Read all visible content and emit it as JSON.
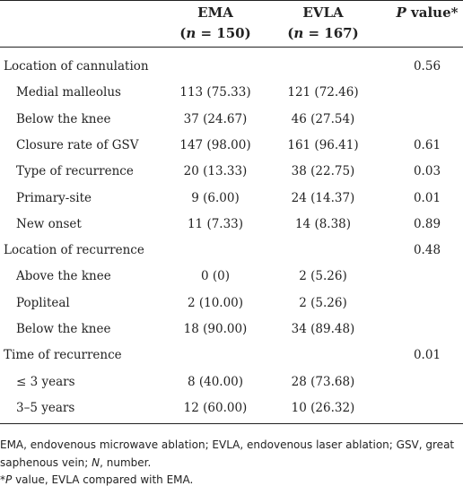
{
  "table": {
    "columns": [
      {
        "name": "EMA",
        "sub": [
          "(",
          "n",
          " = 150)"
        ]
      },
      {
        "name": "EVLA",
        "sub": [
          "(",
          "n",
          " = 167)"
        ]
      },
      {
        "name": [
          "P",
          " value*"
        ]
      }
    ],
    "groups": [
      {
        "label": "Location of cannulation",
        "p": "0.56",
        "rows": [
          {
            "label": "Medial malleolus",
            "ema": "113 (75.33)",
            "evla": "121 (72.46)"
          },
          {
            "label": "Below the knee",
            "ema": "37 (24.67)",
            "evla": "46 (27.54)"
          },
          {
            "label": "Closure rate of GSV",
            "ema": "147 (98.00)",
            "evla": "161 (96.41)",
            "p": "0.61"
          },
          {
            "label": "Type of recurrence",
            "ema": "20 (13.33)",
            "evla": "38 (22.75)",
            "p": "0.03"
          },
          {
            "label": "Primary-site",
            "ema": "9 (6.00)",
            "evla": "24 (14.37)",
            "p": "0.01"
          },
          {
            "label": "New onset",
            "ema": "11 (7.33)",
            "evla": "14 (8.38)",
            "p": "0.89"
          }
        ]
      },
      {
        "label": "Location of recurrence",
        "p": "0.48",
        "rows": [
          {
            "label": "Above the knee",
            "ema": "0 (0)",
            "evla": "2 (5.26)"
          },
          {
            "label": "Popliteal",
            "ema": "2 (10.00)",
            "evla": "2 (5.26)"
          },
          {
            "label": "Below the knee",
            "ema": "18 (90.00)",
            "evla": "34 (89.48)"
          }
        ]
      },
      {
        "label": "Time of recurrence",
        "p": "0.01",
        "rows": [
          {
            "label": "≤ 3 years",
            "ema": "8 (40.00)",
            "evla": "28 (73.68)"
          },
          {
            "label": "3–5 years",
            "ema": "12 (60.00)",
            "evla": "10 (26.32)"
          }
        ]
      }
    ],
    "footnotes": [
      [
        "EMA, endovenous microwave ablation; EVLA, endovenous laser ablation; GSV, great saphenous vein; ",
        "N",
        ", number."
      ],
      [
        "*",
        "P",
        " value, EVLA compared with EMA."
      ]
    ]
  }
}
